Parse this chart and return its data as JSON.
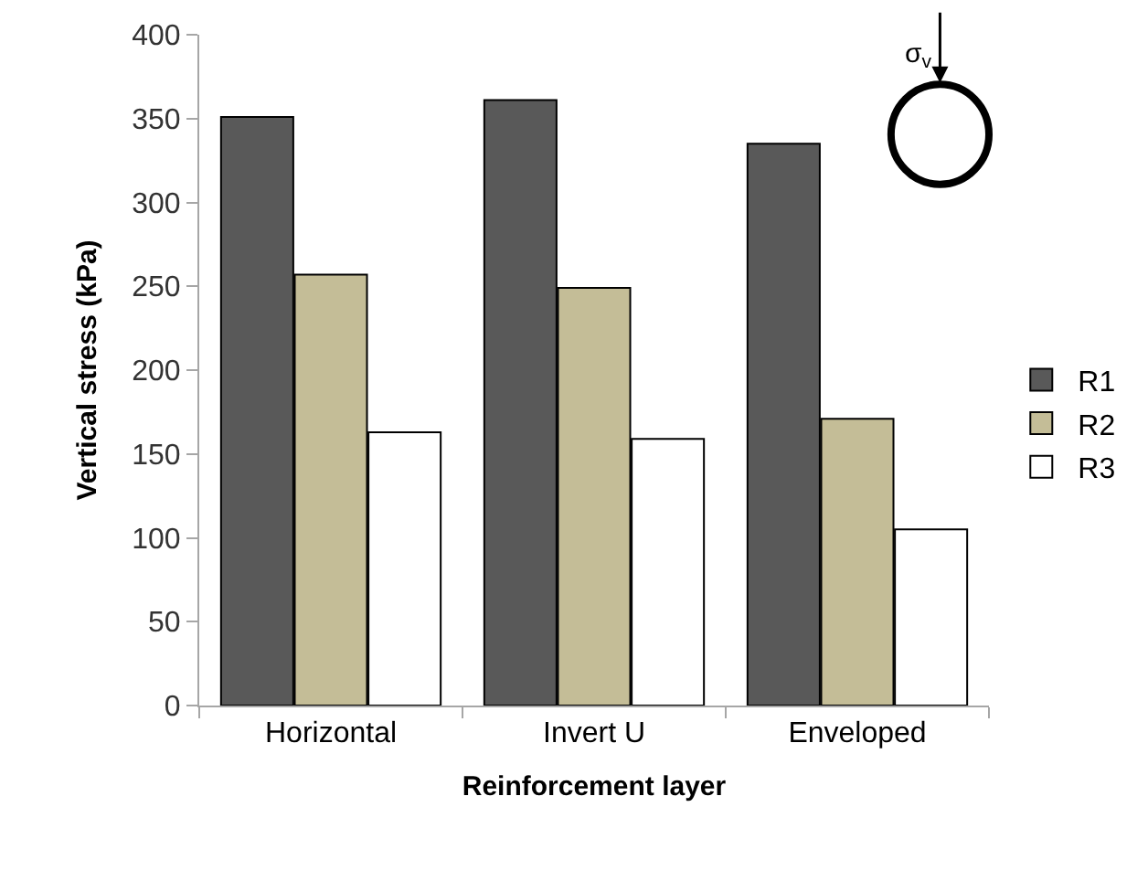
{
  "chart_data": {
    "type": "bar",
    "xlabel": "Reinforcement layer",
    "ylabel": "Vertical stress (kPa)",
    "categories": [
      "Horizontal",
      "Invert U",
      "Enveloped"
    ],
    "series": [
      {
        "name": "R1",
        "color": "#595959",
        "values": [
          351,
          361,
          335
        ]
      },
      {
        "name": "R2",
        "color": "#c4bd97",
        "values": [
          257,
          249,
          171
        ]
      },
      {
        "name": "R3",
        "color": "#ffffff",
        "values": [
          163,
          159,
          105
        ]
      }
    ],
    "ylim": [
      0,
      400
    ],
    "yticks": [
      0,
      50,
      100,
      150,
      200,
      250,
      300,
      350,
      400
    ],
    "annotations": [
      "σ$_{v}$"
    ],
    "legend": "right"
  }
}
